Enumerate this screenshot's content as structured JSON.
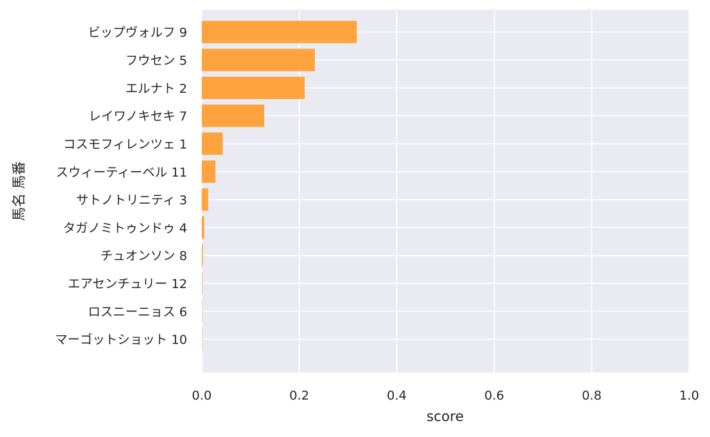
{
  "chart_data": {
    "type": "bar",
    "orientation": "horizontal",
    "title": "",
    "xlabel": "score",
    "ylabel": "馬名 馬番",
    "xlim": [
      0,
      1.0
    ],
    "xticks": [
      "0.0",
      "0.2",
      "0.4",
      "0.6",
      "0.8",
      "1.0"
    ],
    "grid": true,
    "bar_color": "#ff9f33",
    "background_color": "#eaeaf2",
    "categories": [
      "ビップヴォルフ 9",
      "フウセン 5",
      "エルナト 2",
      "レイワノキセキ 7",
      "コスモフィレンツェ 1",
      "スウィーティーベル 11",
      "サトノトリニティ 3",
      "タガノミトゥンドゥ 4",
      "チュオンソン 8",
      "エアセンチュリー 12",
      "ロスニーニョス 6",
      "マーゴットショット 10"
    ],
    "values": [
      0.318,
      0.232,
      0.211,
      0.128,
      0.043,
      0.028,
      0.013,
      0.005,
      0.002,
      0.001,
      0.0005,
      0.0003
    ]
  }
}
